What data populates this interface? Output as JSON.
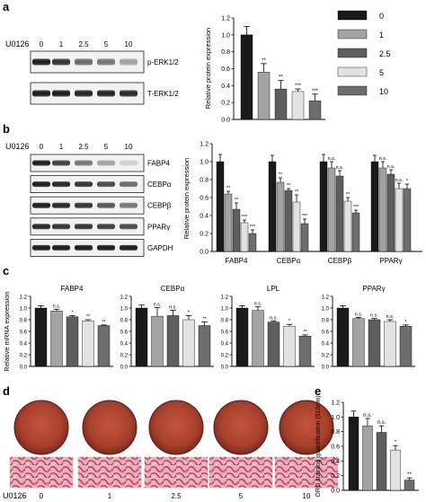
{
  "panel_labels": {
    "a": "a",
    "b": "b",
    "c": "c",
    "d": "d",
    "e": "e"
  },
  "treatment_label": "U0126",
  "doses": [
    "0",
    "1",
    "2.5",
    "5",
    "10"
  ],
  "legend": [
    "0",
    "1",
    "2.5",
    "5",
    "10"
  ],
  "colors": {
    "dose_0": "#1a1a1a",
    "dose_1": "#a3a3a3",
    "dose_2_5": "#5e5e5e",
    "dose_5": "#e2e2e2",
    "dose_10": "#6d6d6d"
  },
  "blots": {
    "a": [
      "p-ERK1/2",
      "T-ERK1/2"
    ],
    "b": [
      "FABP4",
      "CEBPα",
      "CEBPβ",
      "PPARγ",
      "GAPDH"
    ]
  },
  "chart_data": [
    {
      "id": "a",
      "type": "bar",
      "ylabel": "Relative protein expression",
      "ylim": [
        0,
        1.2
      ],
      "yticks": [
        "0.0",
        "0.2",
        "0.4",
        "0.6",
        "0.8",
        "1.0",
        "1.2"
      ],
      "categories": [
        "0",
        "1",
        "2.5",
        "5",
        "10"
      ],
      "values": [
        1.0,
        0.56,
        0.36,
        0.33,
        0.22
      ],
      "errors": [
        0.1,
        0.1,
        0.1,
        0.03,
        0.08
      ],
      "significance": [
        "",
        "**",
        "**",
        "***",
        "***"
      ]
    },
    {
      "id": "b",
      "type": "bar",
      "ylabel": "Relative protein expression",
      "ylim": [
        0,
        1.2
      ],
      "yticks": [
        "0.0",
        "0.2",
        "0.4",
        "0.6",
        "0.8",
        "1.0",
        "1.2"
      ],
      "categories": [
        "FABP4",
        "CEBPα",
        "CEBPβ",
        "PPARγ"
      ],
      "series": [
        {
          "name": "0",
          "values": [
            1.0,
            1.0,
            1.0,
            1.0
          ],
          "errors": [
            0.08,
            0.07,
            0.08,
            0.07
          ],
          "significance": [
            "",
            "",
            "",
            ""
          ]
        },
        {
          "name": "1",
          "values": [
            0.64,
            0.77,
            0.93,
            0.93
          ],
          "errors": [
            0.03,
            0.05,
            0.07,
            0.07
          ],
          "significance": [
            "**",
            "**",
            "n.s.",
            "n.s."
          ]
        },
        {
          "name": "2.5",
          "values": [
            0.47,
            0.68,
            0.84,
            0.86
          ],
          "errors": [
            0.07,
            0.02,
            0.06,
            0.05
          ],
          "significance": [
            "**",
            "**",
            "n.s.",
            "n.s."
          ]
        },
        {
          "name": "5",
          "values": [
            0.32,
            0.55,
            0.56,
            0.7
          ],
          "errors": [
            0.03,
            0.08,
            0.04,
            0.06
          ],
          "significance": [
            "***",
            "**",
            "**",
            "n.s."
          ]
        },
        {
          "name": "10",
          "values": [
            0.2,
            0.31,
            0.43,
            0.7
          ],
          "errors": [
            0.04,
            0.05,
            0.03,
            0.05
          ],
          "significance": [
            "***",
            "***",
            "***",
            "*"
          ]
        }
      ]
    },
    {
      "id": "c",
      "type": "bar",
      "ylabel": "Relative mRNA expression",
      "ylim": [
        0,
        1.2
      ],
      "yticks": [
        "0.0",
        "0.2",
        "0.4",
        "0.6",
        "0.8",
        "1.0",
        "1.2"
      ],
      "subcharts": [
        {
          "title": "FABP4",
          "values": [
            1.0,
            0.95,
            0.85,
            0.78,
            0.7
          ],
          "errors": [
            0.04,
            0.03,
            0.02,
            0.02,
            0.01
          ],
          "significance": [
            "",
            "n.s.",
            "*",
            "**",
            "**"
          ]
        },
        {
          "title": "CEBPα",
          "values": [
            1.0,
            0.86,
            0.87,
            0.8,
            0.7
          ],
          "errors": [
            0.05,
            0.15,
            0.09,
            0.07,
            0.06
          ],
          "significance": [
            "",
            "n.s.",
            "n.s.",
            "*",
            "**"
          ]
        },
        {
          "title": "LPL",
          "values": [
            1.0,
            0.96,
            0.76,
            0.69,
            0.52
          ],
          "errors": [
            0.04,
            0.06,
            0.02,
            0.03,
            0.02
          ],
          "significance": [
            "",
            "n.s.",
            "n.s.",
            "*",
            "**"
          ]
        },
        {
          "title": "PPARγ",
          "values": [
            1.0,
            0.82,
            0.8,
            0.77,
            0.69
          ],
          "errors": [
            0.04,
            0.02,
            0.02,
            0.03,
            0.02
          ],
          "significance": [
            "",
            "n.s.",
            "n.s.",
            "n.s.",
            "*"
          ]
        }
      ]
    },
    {
      "id": "e",
      "type": "bar",
      "ylabel": "ORO staining quantification (510nm)",
      "ylim": [
        0,
        1.2
      ],
      "yticks": [
        "0.0",
        "0.2",
        "0.4",
        "0.6",
        "0.8",
        "1.0",
        "1.2"
      ],
      "categories": [
        "0",
        "1",
        "2.5",
        "5",
        "10"
      ],
      "values": [
        1.0,
        0.88,
        0.79,
        0.55,
        0.14
      ],
      "errors": [
        0.08,
        0.1,
        0.09,
        0.06,
        0.03
      ],
      "significance": [
        "",
        "n.s.",
        "n.s.",
        "*",
        "**"
      ]
    }
  ]
}
